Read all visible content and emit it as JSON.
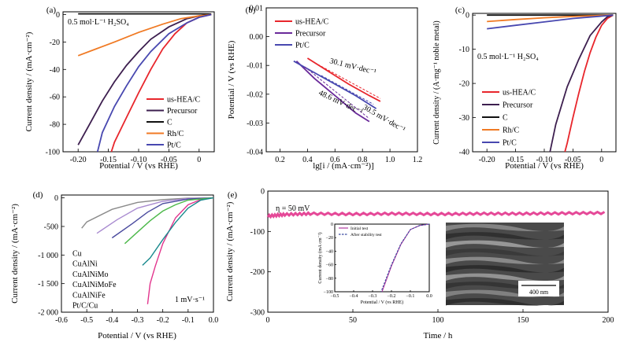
{
  "chart_data": [
    {
      "panel": "(a)",
      "type": "line",
      "annotation": "0.5 mol·L⁻¹ H₂SO₄",
      "xlabel": "Potential / V (vs RHE)",
      "ylabel": "Current density / (mA·cm⁻²)",
      "xlim": [
        -0.225,
        0.025
      ],
      "ylim": [
        -100,
        2
      ],
      "xticks": [
        -0.2,
        -0.15,
        -0.1,
        -0.05,
        0.0
      ],
      "xticklabels": [
        "-0.20",
        "-0.15",
        "-0.10",
        "-0.05",
        "0"
      ],
      "yticks": [
        0,
        -20,
        -40,
        -60,
        -80,
        -100
      ],
      "yticklabels": [
        "0",
        "-20",
        "-40",
        "-60",
        "-80",
        "-100"
      ],
      "legend_position": "bottom-right",
      "series": [
        {
          "name": "us-HEA/C",
          "color": "#e8262c",
          "x": [
            0.02,
            0.0,
            -0.02,
            -0.04,
            -0.06,
            -0.08,
            -0.1,
            -0.12,
            -0.14,
            -0.145
          ],
          "y": [
            0,
            -2,
            -6,
            -14,
            -25,
            -40,
            -57,
            -75,
            -93,
            -100
          ]
        },
        {
          "name": "Precursor",
          "color": "#3d1f4f",
          "x": [
            0.02,
            0.0,
            -0.02,
            -0.05,
            -0.08,
            -0.1,
            -0.12,
            -0.14,
            -0.16,
            -0.18,
            -0.2
          ],
          "y": [
            0,
            -1,
            -3,
            -9,
            -18,
            -27,
            -37,
            -49,
            -63,
            -79,
            -95
          ]
        },
        {
          "name": "C",
          "color": "#111111",
          "x": [
            -0.2,
            -0.1,
            0.0,
            0.02
          ],
          "y": [
            0.5,
            0.5,
            0.5,
            0.4
          ]
        },
        {
          "name": "Rh/C",
          "color": "#f07a24",
          "x": [
            0.02,
            0.0,
            -0.03,
            -0.06,
            -0.1,
            -0.14,
            -0.17,
            -0.2
          ],
          "y": [
            0,
            -1,
            -3,
            -7,
            -13,
            -20,
            -25,
            -30
          ]
        },
        {
          "name": "Pt/C",
          "color": "#4848b0",
          "x": [
            0.02,
            0.0,
            -0.02,
            -0.05,
            -0.08,
            -0.1,
            -0.12,
            -0.14,
            -0.16,
            -0.168
          ],
          "y": [
            0,
            -2,
            -6,
            -14,
            -27,
            -38,
            -52,
            -67,
            -86,
            -100
          ]
        }
      ]
    },
    {
      "panel": "(b)",
      "type": "line",
      "xlabel": "lg[i / (mA·cm⁻²)]",
      "ylabel": "Potential / V (vs RHE)",
      "xlim": [
        0.1,
        1.2
      ],
      "ylim": [
        -0.04,
        0.01
      ],
      "xticks": [
        0.2,
        0.4,
        0.6,
        0.8,
        1.0,
        1.2
      ],
      "xticklabels": [
        "0.2",
        "0.4",
        "0.6",
        "0.8",
        "1.0",
        "1.2"
      ],
      "yticks": [
        0.01,
        0.0,
        -0.01,
        -0.02,
        -0.03,
        -0.04
      ],
      "yticklabels": [
        "0.01",
        "0.00",
        "-0.01",
        "-0.02",
        "-0.03",
        "-0.04"
      ],
      "legend_position": "top-left",
      "annotations": [
        {
          "text": "30.1 mV·dec⁻¹",
          "color": "#e8262c"
        },
        {
          "text": "30.5 mV·dec⁻¹",
          "color": "#4848b0"
        },
        {
          "text": "48.6 mV·dec⁻¹",
          "color": "#6a2a9a"
        }
      ],
      "series": [
        {
          "name": "us-HEA/C",
          "color": "#e8262c",
          "x": [
            0.4,
            0.55,
            0.7,
            0.85,
            0.93
          ],
          "y": [
            -0.0075,
            -0.012,
            -0.0165,
            -0.0205,
            -0.0225
          ]
        },
        {
          "name": "Precursor",
          "color": "#6a2a9a",
          "x": [
            0.32,
            0.45,
            0.6,
            0.75,
            0.85
          ],
          "y": [
            -0.0085,
            -0.0145,
            -0.0205,
            -0.0265,
            -0.0295
          ]
        },
        {
          "name": "Pt/C",
          "color": "#4848b0",
          "x": [
            0.3,
            0.45,
            0.6,
            0.75,
            0.9
          ],
          "y": [
            -0.0085,
            -0.0125,
            -0.0165,
            -0.0205,
            -0.025
          ]
        }
      ]
    },
    {
      "panel": "(c)",
      "type": "line",
      "annotation": "0.5 mol·L⁻¹ H₂SO₄",
      "xlabel": "Potential / V (vs RHE)",
      "ylabel": "Current density / (A·mg⁻¹ noble metal)",
      "xlim": [
        -0.225,
        0.025
      ],
      "ylim": [
        -40,
        0.5
      ],
      "xticks": [
        -0.2,
        -0.15,
        -0.1,
        -0.05,
        0.0
      ],
      "xticklabels": [
        "-0.20",
        "-0.15",
        "-0.10",
        "-0.05",
        "0"
      ],
      "yticks": [
        0,
        -10,
        -20,
        -30,
        -40
      ],
      "yticklabels": [
        "0",
        "-10",
        "-20",
        "-30",
        "-40"
      ],
      "legend_position": "bottom-left",
      "series": [
        {
          "name": "us-HEA/C",
          "color": "#e8262c",
          "x": [
            0.02,
            0.01,
            0.0,
            -0.01,
            -0.02,
            -0.03,
            -0.04,
            -0.05,
            -0.06,
            -0.064
          ],
          "y": [
            0,
            -1,
            -3,
            -6.5,
            -11,
            -16.5,
            -23,
            -30,
            -37.5,
            -40
          ]
        },
        {
          "name": "Precursor",
          "color": "#3d1f4f",
          "x": [
            0.02,
            0.01,
            0.0,
            -0.02,
            -0.04,
            -0.06,
            -0.08,
            -0.09
          ],
          "y": [
            0,
            -0.5,
            -2,
            -6,
            -13,
            -21,
            -32,
            -40
          ]
        },
        {
          "name": "C",
          "color": "#111111",
          "x": [
            -0.2,
            -0.1,
            0.0,
            0.02
          ],
          "y": [
            0,
            0,
            0,
            0
          ]
        },
        {
          "name": "Rh/C",
          "color": "#f07a24",
          "x": [
            0.02,
            0.0,
            -0.05,
            -0.1,
            -0.15,
            -0.2
          ],
          "y": [
            0,
            -0.1,
            -0.4,
            -0.8,
            -1.3,
            -1.9
          ]
        },
        {
          "name": "Pt/C",
          "color": "#4848b0",
          "x": [
            0.02,
            0.0,
            -0.05,
            -0.1,
            -0.15,
            -0.2
          ],
          "y": [
            0,
            -0.3,
            -1.0,
            -2.0,
            -3.0,
            -4.0
          ]
        }
      ]
    },
    {
      "panel": "(d)",
      "type": "line",
      "annotation": "1 mV·s⁻¹",
      "xlabel": "Potential / V (vs RHE)",
      "ylabel": "Current density / (mA·cm⁻²)",
      "xlim": [
        -0.6,
        0.0
      ],
      "ylim": [
        -2000,
        50
      ],
      "xticks": [
        -0.6,
        -0.5,
        -0.4,
        -0.3,
        -0.2,
        -0.1,
        0.0
      ],
      "xticklabels": [
        "-0.6",
        "-0.5",
        "-0.4",
        "-0.3",
        "-0.2",
        "-0.1",
        "0.0"
      ],
      "yticks": [
        0,
        -500,
        -1000,
        -1500,
        -2000
      ],
      "yticklabels": [
        "0",
        "-500",
        "-1 000",
        "-1 500",
        "-2 000"
      ],
      "legend_position": "bottom-left",
      "series": [
        {
          "name": "Cu",
          "color": "#8a8a8a",
          "x": [
            0.0,
            -0.1,
            -0.2,
            -0.3,
            -0.4,
            -0.5,
            -0.52
          ],
          "y": [
            0,
            -5,
            -30,
            -80,
            -200,
            -420,
            -530
          ]
        },
        {
          "name": "CuAlNi",
          "color": "#a98bd0",
          "x": [
            0.0,
            -0.1,
            -0.2,
            -0.3,
            -0.38,
            -0.46
          ],
          "y": [
            0,
            -10,
            -60,
            -180,
            -380,
            -620
          ]
        },
        {
          "name": "CuAlNiMo",
          "color": "#4a4a9e",
          "x": [
            0.0,
            -0.1,
            -0.2,
            -0.26,
            -0.32,
            -0.4
          ],
          "y": [
            0,
            -20,
            -100,
            -250,
            -450,
            -700
          ]
        },
        {
          "name": "CuAlNiMoFe",
          "color": "#e2358d",
          "x": [
            0.0,
            -0.05,
            -0.1,
            -0.15,
            -0.2,
            -0.23,
            -0.25,
            -0.26
          ],
          "y": [
            0,
            -30,
            -120,
            -350,
            -800,
            -1200,
            -1500,
            -1860
          ]
        },
        {
          "name": "CuAlNiFe",
          "color": "#4cb84a",
          "x": [
            0.0,
            -0.1,
            -0.15,
            -0.2,
            -0.25,
            -0.3,
            -0.35
          ],
          "y": [
            0,
            -40,
            -120,
            -230,
            -400,
            -600,
            -800
          ]
        },
        {
          "name": "Pt/C/Cu",
          "color": "#1a8a8e",
          "x": [
            0.0,
            -0.05,
            -0.1,
            -0.15,
            -0.2,
            -0.25,
            -0.28
          ],
          "y": [
            0,
            -40,
            -180,
            -430,
            -730,
            -1050,
            -1180
          ]
        }
      ]
    },
    {
      "panel": "(e)",
      "type": "line",
      "annotation": "η = 50 mV",
      "xlabel": "Time / h",
      "ylabel": "Current density / (mA·cm⁻²)",
      "xlim": [
        0,
        200
      ],
      "ylim": [
        -300,
        0
      ],
      "xticks": [
        0,
        50,
        100,
        150,
        200
      ],
      "xticklabels": [
        "0",
        "50",
        "100",
        "150",
        "200"
      ],
      "yticks": [
        0,
        -100,
        -200,
        -300
      ],
      "yticklabels": [
        "0",
        "-100",
        "-200",
        "-300"
      ],
      "series": [
        {
          "name": "",
          "color": "#e2358d",
          "x": [
            0,
            10,
            25,
            50,
            75,
            100,
            125,
            150,
            175,
            200
          ],
          "y": [
            -62,
            -58,
            -56,
            -57,
            -56,
            -57,
            -56,
            -56,
            -55,
            -54
          ]
        }
      ]
    },
    {
      "panel": "(e) inset",
      "type": "line",
      "xlabel": "Potential / V (vs RHE)",
      "ylabel": "Current density (mA cm⁻²)",
      "xlim": [
        -0.5,
        0.0
      ],
      "ylim": [
        -100,
        0
      ],
      "xticks": [
        -0.5,
        -0.4,
        -0.3,
        -0.2,
        -0.1,
        0.0
      ],
      "xticklabels": [
        "−0.5",
        "−0.4",
        "−0.3",
        "−0.2",
        "−0.1",
        "0.0"
      ],
      "yticks": [
        0,
        -20,
        -40,
        -60,
        -80,
        -100
      ],
      "yticklabels": [
        "0",
        "−20",
        "−40",
        "−60",
        "−80",
        "−100"
      ],
      "legend_position": "top-left",
      "series": [
        {
          "name": "Initial test",
          "color": "#b03aa0",
          "x": [
            0.0,
            -0.05,
            -0.1,
            -0.15,
            -0.2,
            -0.25
          ],
          "y": [
            0,
            -2,
            -8,
            -30,
            -62,
            -100
          ]
        },
        {
          "name": "After stability test",
          "color": "#3a4aa0",
          "x": [
            0.0,
            -0.05,
            -0.1,
            -0.15,
            -0.2,
            -0.255
          ],
          "y": [
            0,
            -2,
            -8,
            -29,
            -60,
            -100
          ]
        }
      ],
      "image_label": "400 nm"
    }
  ]
}
